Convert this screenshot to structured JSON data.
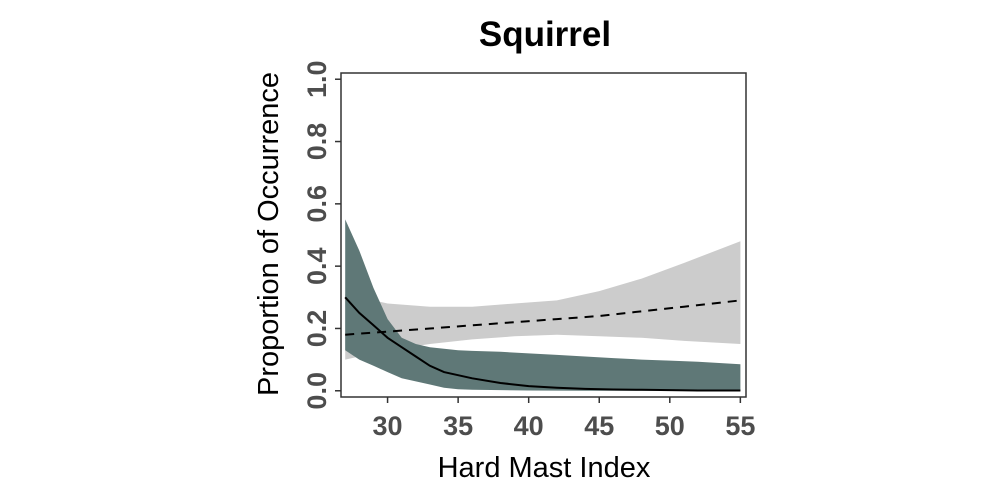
{
  "chart_data": {
    "type": "area",
    "title": "Squirrel",
    "xlabel": "Hard Mast Index",
    "ylabel": "Proportion of Occurrence",
    "xlim": [
      26.7,
      55.4
    ],
    "ylim": [
      -0.02,
      1.02
    ],
    "x_ticks": [
      30,
      35,
      40,
      45,
      50,
      55
    ],
    "x_tick_labels": [
      "30",
      "35",
      "40",
      "45",
      "50",
      "55"
    ],
    "y_ticks": [
      0.0,
      0.2,
      0.4,
      0.6,
      0.8,
      1.0
    ],
    "y_tick_labels": [
      "0.0",
      "0.2",
      "0.4",
      "0.6",
      "0.8",
      "1.0"
    ],
    "grid": false,
    "series": [
      {
        "line_style": "solid",
        "line_color": "#000000",
        "band_color": "#5f7877",
        "x": [
          27,
          28,
          29,
          30,
          31,
          32,
          33,
          34,
          35,
          36,
          38,
          40,
          42,
          44,
          46,
          48,
          50,
          52,
          55
        ],
        "y": [
          0.3,
          0.25,
          0.21,
          0.17,
          0.14,
          0.11,
          0.08,
          0.06,
          0.05,
          0.04,
          0.025,
          0.015,
          0.01,
          0.006,
          0.004,
          0.003,
          0.002,
          0.001,
          0.001
        ],
        "lower": [
          0.13,
          0.1,
          0.08,
          0.06,
          0.04,
          0.03,
          0.02,
          0.01,
          0.005,
          0.003,
          0.002,
          0.001,
          0.0005,
          0.0003,
          0.0002,
          0.0001,
          0.0,
          0.0,
          0.0
        ],
        "upper": [
          0.55,
          0.45,
          0.33,
          0.23,
          0.17,
          0.15,
          0.14,
          0.135,
          0.13,
          0.128,
          0.125,
          0.12,
          0.115,
          0.11,
          0.105,
          0.1,
          0.097,
          0.093,
          0.085
        ]
      },
      {
        "line_style": "dashed",
        "line_color": "#000000",
        "band_color": "#cccccc",
        "x": [
          27,
          30,
          33,
          36,
          39,
          42,
          45,
          48,
          51,
          55
        ],
        "y": [
          0.18,
          0.19,
          0.2,
          0.21,
          0.22,
          0.23,
          0.24,
          0.255,
          0.27,
          0.29
        ],
        "lower": [
          0.1,
          0.13,
          0.15,
          0.165,
          0.175,
          0.18,
          0.175,
          0.17,
          0.16,
          0.15
        ],
        "upper": [
          0.31,
          0.28,
          0.27,
          0.27,
          0.28,
          0.29,
          0.32,
          0.36,
          0.41,
          0.48
        ]
      }
    ]
  }
}
